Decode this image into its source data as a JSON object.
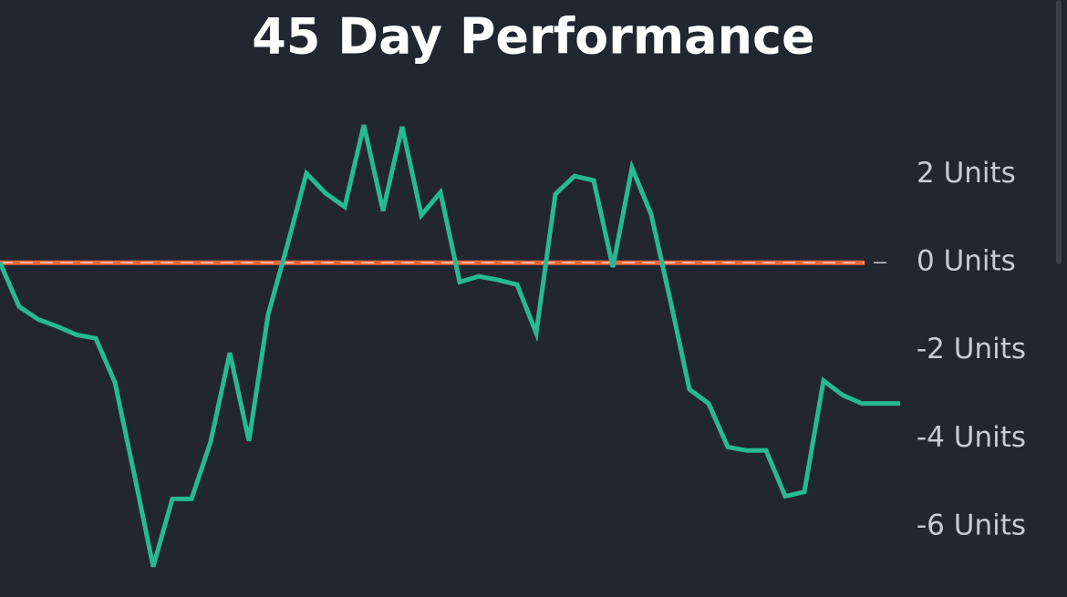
{
  "chart_data": {
    "type": "line",
    "title": "45 Day Performance",
    "series": [
      {
        "color": "#26b994",
        "values": [
          0,
          -1.0,
          -1.29,
          -1.45,
          -1.64,
          -1.72,
          -2.72,
          -4.79,
          -6.91,
          -5.37,
          -5.37,
          -4.07,
          -2.05,
          -4.05,
          -1.18,
          0.39,
          2.03,
          1.58,
          1.27,
          3.13,
          1.18,
          3.09,
          1.08,
          1.6,
          -0.44,
          -0.31,
          -0.39,
          -0.5,
          -1.6,
          1.56,
          1.97,
          1.87,
          -0.1,
          2.16,
          1.1,
          -0.85,
          -2.88,
          -3.2,
          -4.19,
          -4.27,
          -4.27,
          -5.31,
          -5.21,
          -2.68,
          -3.01,
          -3.2,
          -3.2,
          -3.2
        ]
      }
    ],
    "reference_line": {
      "value": 0,
      "color": "#f2683c"
    },
    "ylim": [
      -7.6,
      3.9
    ],
    "yticks": [
      {
        "value": 2,
        "label": "2 Units"
      },
      {
        "value": 0,
        "label": "0 Units"
      },
      {
        "value": -2,
        "label": "-2 Units"
      },
      {
        "value": -4,
        "label": "-4 Units"
      },
      {
        "value": -6,
        "label": "-6 Units"
      }
    ]
  }
}
